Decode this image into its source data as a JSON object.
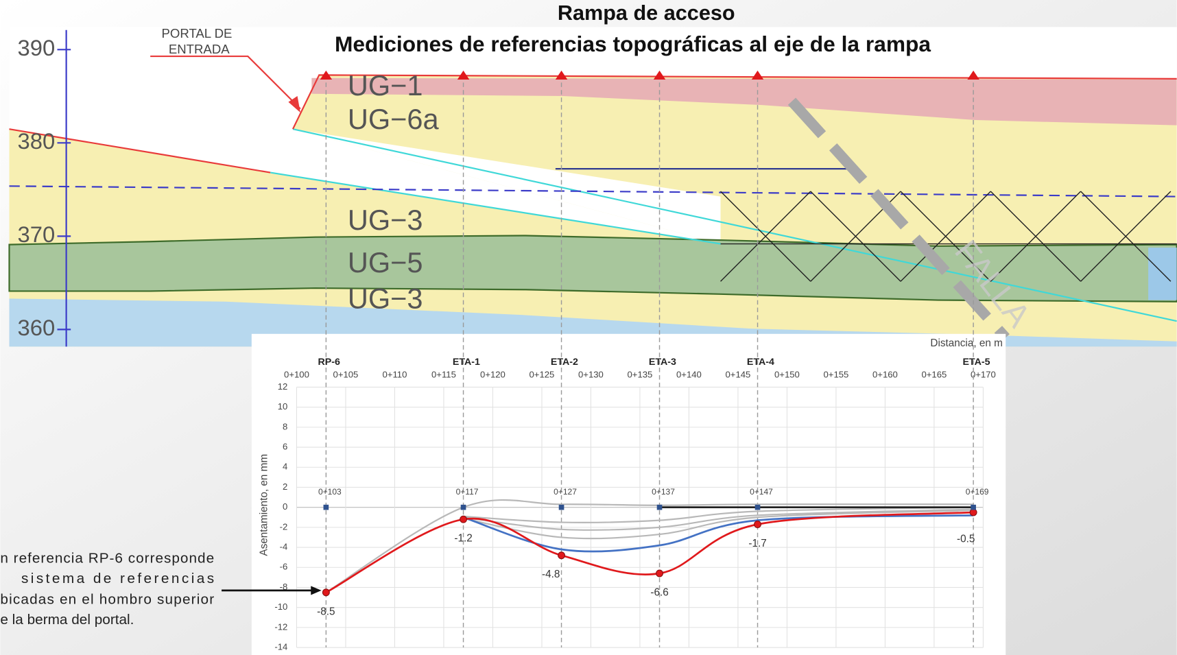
{
  "header": {
    "title": "Rampa de acceso",
    "subtitle": "Mediciones de referencias topográficas al eje de la rampa"
  },
  "section": {
    "ylim": [
      358,
      392.5
    ],
    "yticks": [
      360,
      370,
      380,
      390
    ],
    "portal": [
      "PORTAL  DE",
      "ENTRADA"
    ],
    "units": [
      "UG−1",
      "UG−6a",
      "UG−3",
      "UG−5",
      "UG−3"
    ],
    "fault": "FALLA"
  },
  "note": [
    "n referencia RP-6 corresponde",
    "sistema de referencias",
    "bicadas en el hombro superior",
    "e la berma del portal."
  ],
  "chart_data": {
    "type": "line",
    "xlabel": "Distancia, en m",
    "ylabel": "Asentamiento, en mm",
    "stations": [
      "RP-6",
      "ETA-1",
      "ETA-2",
      "ETA-3",
      "ETA-4",
      "ETA-5"
    ],
    "x": [
      103,
      117,
      127,
      137,
      147,
      169
    ],
    "xlim": [
      100,
      170
    ],
    "xticks": [
      {
        "value": 100,
        "label": "0+100"
      },
      {
        "value": 105,
        "label": "0+105"
      },
      {
        "value": 110,
        "label": "0+110"
      },
      {
        "value": 115,
        "label": "0+115"
      },
      {
        "value": 120,
        "label": "0+120"
      },
      {
        "value": 125,
        "label": "0+125"
      },
      {
        "value": 130,
        "label": "0+130"
      },
      {
        "value": 135,
        "label": "0+135"
      },
      {
        "value": 140,
        "label": "0+140"
      },
      {
        "value": 145,
        "label": "0+145"
      },
      {
        "value": 150,
        "label": "0+150"
      },
      {
        "value": 155,
        "label": "0+155"
      },
      {
        "value": 160,
        "label": "0+160"
      },
      {
        "value": 165,
        "label": "0+165"
      },
      {
        "value": 170,
        "label": "0+170"
      }
    ],
    "ylim": [
      -14,
      12
    ],
    "yticks": [
      -14,
      -12,
      -10,
      -8,
      -6,
      -4,
      -2,
      0,
      2,
      4,
      6,
      8,
      10,
      12
    ],
    "grid": true,
    "series": [
      {
        "color": "#b8b8b8",
        "values": [
          -8.5,
          0,
          0.3,
          0.2,
          0.3,
          0.3
        ]
      },
      {
        "color": "#b8b8b8",
        "values": [
          null,
          -0.9,
          -1.5,
          -1.3,
          -0.4,
          0
        ]
      },
      {
        "color": "#b8b8b8",
        "values": [
          null,
          -1.0,
          -2.2,
          -2.0,
          -0.8,
          -0.2
        ]
      },
      {
        "color": "#b8b8b8",
        "values": [
          null,
          -1.1,
          -3.0,
          -2.7,
          -1.0,
          -0.3
        ]
      },
      {
        "color": "#4472c4",
        "values": [
          null,
          -1.0,
          -4.2,
          -3.8,
          -1.3,
          -0.8
        ]
      },
      {
        "color": "#222222",
        "values": [
          null,
          null,
          null,
          0,
          0,
          0
        ]
      },
      {
        "color": "#e0191c",
        "marker": "circle",
        "values": [
          -8.5,
          -1.2,
          -4.8,
          -6.6,
          -1.7,
          -0.5
        ]
      },
      {
        "color": "#2f528f",
        "marker": "square",
        "line": false,
        "values": [
          0,
          0,
          0,
          0,
          0,
          0
        ],
        "labels": [
          "0+103",
          "0+117",
          "0+127",
          "0+137",
          "0+147",
          "0+169"
        ]
      }
    ]
  }
}
